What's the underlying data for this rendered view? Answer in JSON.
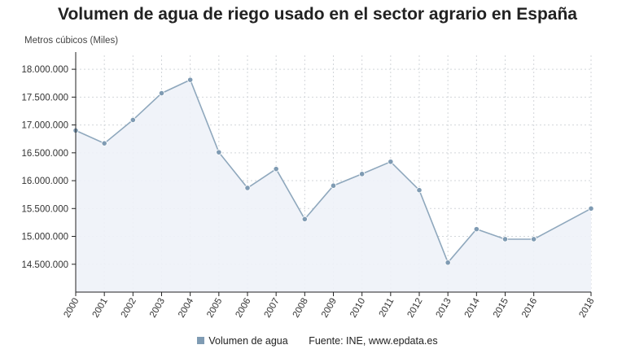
{
  "chart_data": {
    "type": "area",
    "title": "Volumen de agua de riego usado en el sector agrario en España",
    "ylabel": "Metros cúbicos (Miles)",
    "ylim": [
      14000000,
      18250000
    ],
    "y_ticks": [
      "14.500.000",
      "15.000.000",
      "15.500.000",
      "16.000.000",
      "16.500.000",
      "17.000.000",
      "17.500.000",
      "18.000.000"
    ],
    "y_tick_values": [
      14500000,
      15000000,
      15500000,
      16000000,
      16500000,
      17000000,
      17500000,
      18000000
    ],
    "x": [
      "2000",
      "2001",
      "2002",
      "2003",
      "2004",
      "2005",
      "2006",
      "2007",
      "2008",
      "2009",
      "2010",
      "2011",
      "2012",
      "2013",
      "2014",
      "2015",
      "2016",
      "2018"
    ],
    "x_numeric": [
      2000,
      2001,
      2002,
      2003,
      2004,
      2005,
      2006,
      2007,
      2008,
      2009,
      2010,
      2011,
      2012,
      2013,
      2014,
      2015,
      2016,
      2018
    ],
    "xlim": [
      2000,
      2018
    ],
    "series": [
      {
        "name": "Volumen de agua",
        "values": [
          16900000,
          16670000,
          17090000,
          17570000,
          17810000,
          16510000,
          15870000,
          16210000,
          15310000,
          15910000,
          16120000,
          16340000,
          15830000,
          14530000,
          15130000,
          14950000,
          14950000,
          15500000
        ]
      }
    ],
    "grid": true,
    "legend": "bottom",
    "source": "Fuente: INE, www.epdata.es",
    "colors": {
      "line": "#8fa8bd",
      "point": "#7f9bb3",
      "fill": "#eef2f8",
      "grid": "#d2d6da",
      "axis": "#222222"
    }
  }
}
